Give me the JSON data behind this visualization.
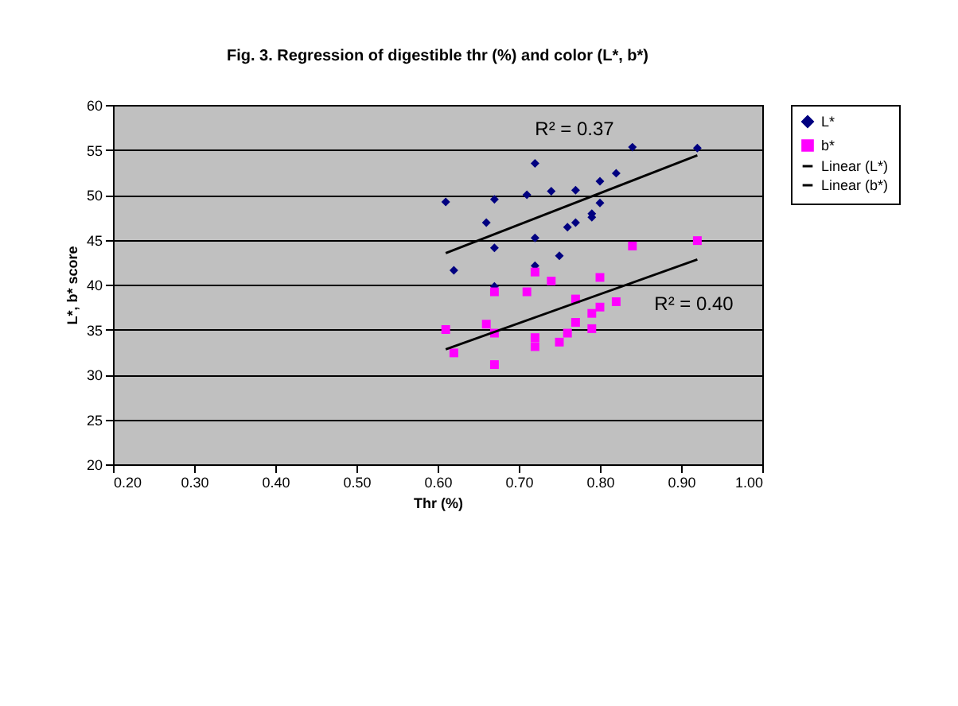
{
  "chart_data": {
    "type": "scatter",
    "title": "Fig. 3.  Regression of digestible thr (%) and color (L*, b*)",
    "xlabel": "Thr (%)",
    "ylabel": "L*, b* score",
    "xlim": [
      0.2,
      1.0
    ],
    "xticks": [
      {
        "value": 0.2,
        "label": "0.20"
      },
      {
        "value": 0.3,
        "label": "0.30"
      },
      {
        "value": 0.4,
        "label": "0.40"
      },
      {
        "value": 0.5,
        "label": "0.50"
      },
      {
        "value": 0.6,
        "label": "0.60"
      },
      {
        "value": 0.7,
        "label": "0.70"
      },
      {
        "value": 0.8,
        "label": "0.80"
      },
      {
        "value": 0.9,
        "label": "0.90"
      },
      {
        "value": 1.0,
        "label": "1.00"
      }
    ],
    "ylim": [
      20,
      60
    ],
    "yticks": [
      20,
      25,
      30,
      35,
      40,
      45,
      50,
      55,
      60
    ],
    "grid": "y",
    "legend": "right",
    "series": [
      {
        "name": "L*",
        "marker": "diamond",
        "color": "#000080",
        "x": [
          0.61,
          0.62,
          0.66,
          0.67,
          0.67,
          0.67,
          0.71,
          0.72,
          0.72,
          0.72,
          0.74,
          0.75,
          0.76,
          0.77,
          0.77,
          0.79,
          0.79,
          0.8,
          0.8,
          0.82,
          0.84,
          0.92
        ],
        "values": [
          49.2,
          41.6,
          46.9,
          49.5,
          44.1,
          39.8,
          50.0,
          53.5,
          45.2,
          42.1,
          50.4,
          43.2,
          46.4,
          46.9,
          50.5,
          47.9,
          47.5,
          49.1,
          51.5,
          52.4,
          55.3,
          55.2
        ]
      },
      {
        "name": "b*",
        "marker": "square",
        "color": "#ff00ff",
        "x": [
          0.61,
          0.62,
          0.66,
          0.67,
          0.67,
          0.67,
          0.71,
          0.72,
          0.72,
          0.72,
          0.74,
          0.75,
          0.76,
          0.77,
          0.77,
          0.79,
          0.79,
          0.8,
          0.8,
          0.82,
          0.84,
          0.92
        ],
        "values": [
          35.0,
          32.4,
          35.6,
          39.2,
          34.6,
          31.1,
          39.2,
          41.4,
          34.1,
          33.1,
          40.4,
          33.6,
          34.6,
          38.4,
          35.8,
          36.8,
          35.1,
          37.5,
          40.8,
          38.1,
          44.3,
          44.9
        ]
      },
      {
        "name": "Linear (L*)",
        "type": "line",
        "marker": "none",
        "color": "#000000",
        "x": [
          0.61,
          0.92
        ],
        "values": [
          43.5,
          54.4
        ]
      },
      {
        "name": "Linear (b*)",
        "type": "line",
        "marker": "none",
        "color": "#000000",
        "x": [
          0.61,
          0.92
        ],
        "values": [
          32.8,
          42.8
        ]
      }
    ],
    "annotations": [
      "R² = 0.37",
      "R² = 0.40"
    ]
  }
}
